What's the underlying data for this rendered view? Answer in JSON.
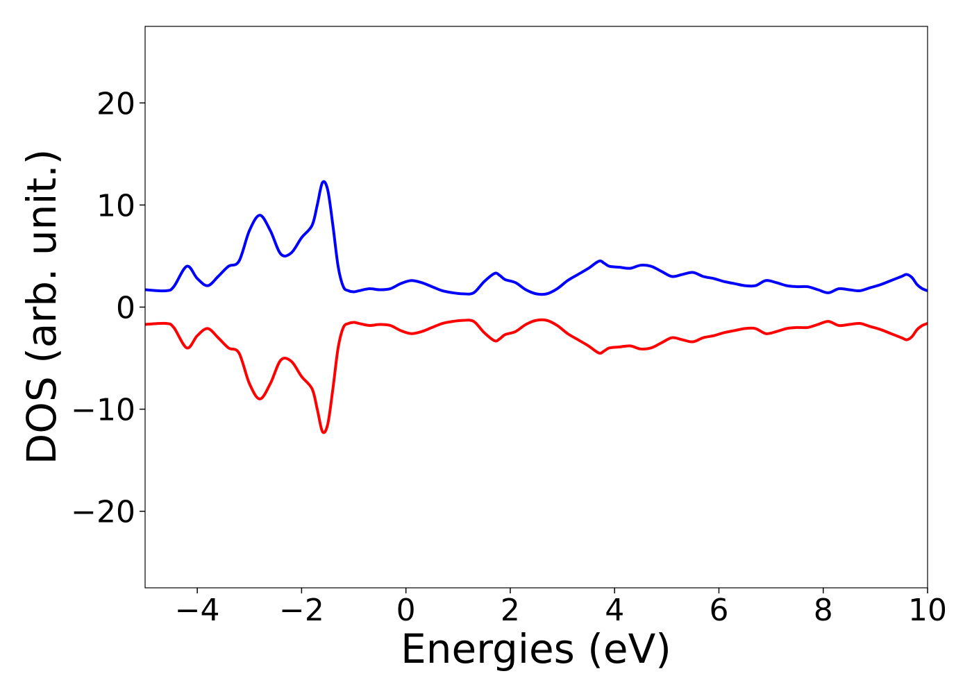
{
  "chart_data": {
    "type": "line",
    "xlabel": "Energies (eV)",
    "ylabel": "DOS (arb. unit.)",
    "xlim": [
      -5,
      10
    ],
    "ylim": [
      -27.5,
      27.5
    ],
    "xticks": [
      -4,
      -2,
      0,
      2,
      4,
      6,
      8,
      10
    ],
    "xtick_labels": [
      "−4",
      "−2",
      "0",
      "2",
      "4",
      "6",
      "8",
      "10"
    ],
    "yticks": [
      -20,
      -10,
      0,
      10,
      20
    ],
    "ytick_labels": [
      "−20",
      "−10",
      "0",
      "10",
      "20"
    ],
    "grid": false,
    "colors": {
      "spin_up": "#0000ff",
      "spin_down": "#ff0000"
    },
    "series": [
      {
        "color": "#0000ff",
        "x": [
          -5.0,
          -4.6,
          -4.45,
          -4.2,
          -4.0,
          -3.8,
          -3.6,
          -3.4,
          -3.2,
          -3.0,
          -2.8,
          -2.6,
          -2.4,
          -2.2,
          -2.0,
          -1.8,
          -1.7,
          -1.6,
          -1.5,
          -1.4,
          -1.3,
          -1.2,
          -1.1,
          -1.0,
          -0.9,
          -0.7,
          -0.5,
          -0.3,
          -0.1,
          0.1,
          0.3,
          0.5,
          0.7,
          0.9,
          1.1,
          1.3,
          1.5,
          1.7,
          1.8,
          1.9,
          2.1,
          2.3,
          2.5,
          2.7,
          2.9,
          3.1,
          3.3,
          3.5,
          3.7,
          3.8,
          3.9,
          4.1,
          4.3,
          4.5,
          4.7,
          4.9,
          5.1,
          5.3,
          5.5,
          5.7,
          5.9,
          6.1,
          6.3,
          6.5,
          6.7,
          6.9,
          7.1,
          7.3,
          7.5,
          7.7,
          7.9,
          8.1,
          8.3,
          8.5,
          8.7,
          8.9,
          9.1,
          9.3,
          9.5,
          9.6,
          9.7,
          9.8,
          9.9,
          10.0
        ],
        "y": [
          1.7,
          1.6,
          2.0,
          4.0,
          2.8,
          2.1,
          3.0,
          4.0,
          4.5,
          7.5,
          9.0,
          7.5,
          5.2,
          5.3,
          6.8,
          8.0,
          10.0,
          12.2,
          11.5,
          8.0,
          4.0,
          2.0,
          1.6,
          1.5,
          1.6,
          1.8,
          1.7,
          1.8,
          2.3,
          2.6,
          2.4,
          2.0,
          1.6,
          1.4,
          1.3,
          1.4,
          2.5,
          3.3,
          3.1,
          2.7,
          2.4,
          1.7,
          1.3,
          1.3,
          1.8,
          2.6,
          3.2,
          3.8,
          4.5,
          4.3,
          4.0,
          3.9,
          3.8,
          4.1,
          4.0,
          3.5,
          3.0,
          3.2,
          3.4,
          3.0,
          2.8,
          2.5,
          2.3,
          2.1,
          2.1,
          2.6,
          2.4,
          2.1,
          2.0,
          2.0,
          1.7,
          1.4,
          1.8,
          1.7,
          1.6,
          1.9,
          2.2,
          2.6,
          3.0,
          3.2,
          2.9,
          2.2,
          1.8,
          1.6
        ]
      },
      {
        "color": "#ff0000",
        "x": [
          -5.0,
          -4.6,
          -4.45,
          -4.2,
          -4.0,
          -3.8,
          -3.6,
          -3.4,
          -3.2,
          -3.0,
          -2.8,
          -2.6,
          -2.4,
          -2.2,
          -2.0,
          -1.8,
          -1.7,
          -1.6,
          -1.5,
          -1.4,
          -1.3,
          -1.2,
          -1.1,
          -1.0,
          -0.9,
          -0.7,
          -0.5,
          -0.3,
          -0.1,
          0.1,
          0.3,
          0.5,
          0.7,
          0.9,
          1.1,
          1.3,
          1.5,
          1.7,
          1.8,
          1.9,
          2.1,
          2.3,
          2.5,
          2.7,
          2.9,
          3.1,
          3.3,
          3.5,
          3.7,
          3.8,
          3.9,
          4.1,
          4.3,
          4.5,
          4.7,
          4.9,
          5.1,
          5.3,
          5.5,
          5.7,
          5.9,
          6.1,
          6.3,
          6.5,
          6.7,
          6.9,
          7.1,
          7.3,
          7.5,
          7.7,
          7.9,
          8.1,
          8.3,
          8.5,
          8.7,
          8.9,
          9.1,
          9.3,
          9.5,
          9.6,
          9.7,
          9.8,
          9.9,
          10.0
        ],
        "y": [
          -1.7,
          -1.6,
          -2.0,
          -4.0,
          -2.8,
          -2.1,
          -3.0,
          -4.0,
          -4.5,
          -7.5,
          -9.0,
          -7.5,
          -5.2,
          -5.3,
          -6.8,
          -8.0,
          -10.0,
          -12.2,
          -11.5,
          -8.0,
          -4.0,
          -2.0,
          -1.6,
          -1.5,
          -1.6,
          -1.8,
          -1.7,
          -1.8,
          -2.3,
          -2.6,
          -2.4,
          -2.0,
          -1.6,
          -1.4,
          -1.3,
          -1.4,
          -2.5,
          -3.3,
          -3.1,
          -2.7,
          -2.4,
          -1.7,
          -1.3,
          -1.3,
          -1.8,
          -2.6,
          -3.2,
          -3.8,
          -4.5,
          -4.3,
          -4.0,
          -3.9,
          -3.8,
          -4.1,
          -4.0,
          -3.5,
          -3.0,
          -3.2,
          -3.4,
          -3.0,
          -2.8,
          -2.5,
          -2.3,
          -2.1,
          -2.1,
          -2.6,
          -2.4,
          -2.1,
          -2.0,
          -2.0,
          -1.7,
          -1.4,
          -1.8,
          -1.7,
          -1.6,
          -1.9,
          -2.2,
          -2.6,
          -3.0,
          -3.2,
          -2.9,
          -2.2,
          -1.8,
          -1.6
        ]
      }
    ]
  }
}
